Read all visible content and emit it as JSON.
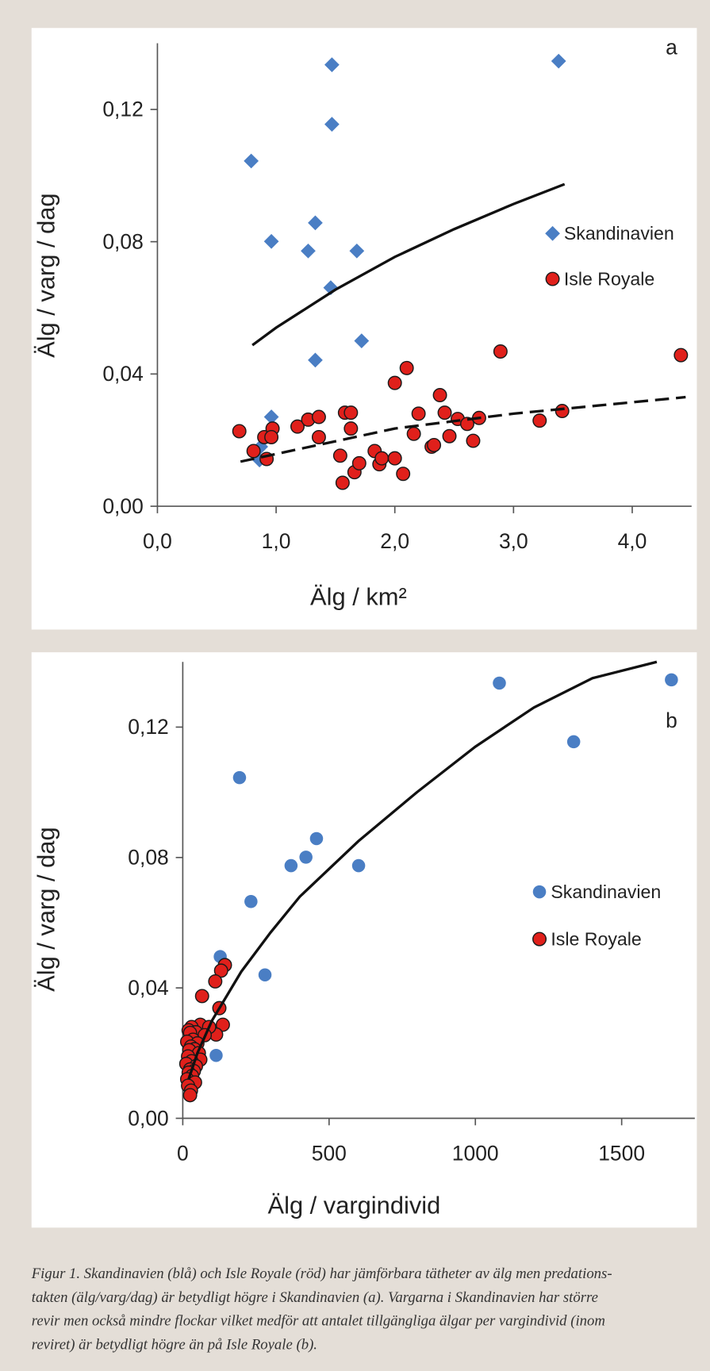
{
  "chart_data": [
    {
      "type": "scatter",
      "panel_label": "a",
      "xlabel": "Älg / km²",
      "ylabel": "Älg / varg / dag",
      "xlim": [
        0,
        4.5
      ],
      "ylim": [
        0,
        0.14
      ],
      "xticks": [
        {
          "value": 0,
          "label": "0,0"
        },
        {
          "value": 1,
          "label": "1,0"
        },
        {
          "value": 2,
          "label": "2,0"
        },
        {
          "value": 3,
          "label": "3,0"
        },
        {
          "value": 4,
          "label": "4,0"
        }
      ],
      "yticks": [
        {
          "value": 0,
          "label": "0,00"
        },
        {
          "value": 0.04,
          "label": "0,04"
        },
        {
          "value": 0.08,
          "label": "0,08"
        },
        {
          "value": 0.12,
          "label": "0,12"
        }
      ],
      "series": [
        {
          "name": "Skandinavien",
          "color": "#4a7ec4",
          "marker": "diamond",
          "x": [
            1.47,
            3.38,
            1.47,
            0.79,
            1.33,
            0.96,
            1.27,
            1.68,
            1.46,
            1.72,
            1.33,
            0.96,
            0.87,
            0.86
          ],
          "values": [
            0.1335,
            0.1346,
            0.1155,
            0.1044,
            0.0857,
            0.0801,
            0.0772,
            0.0772,
            0.0661,
            0.05,
            0.0442,
            0.027,
            0.018,
            0.014
          ]
        },
        {
          "name": "Isle Royale",
          "color": "#e0201b",
          "marker": "circle",
          "x": [
            0.69,
            0.81,
            0.9,
            0.92,
            0.97,
            0.96,
            1.18,
            1.27,
            1.36,
            1.36,
            1.54,
            1.58,
            1.63,
            1.63,
            1.56,
            1.66,
            1.7,
            1.83,
            1.87,
            1.89,
            2.0,
            2.0,
            2.1,
            2.07,
            2.16,
            2.2,
            2.31,
            2.33,
            2.38,
            2.42,
            2.46,
            2.53,
            2.61,
            2.66,
            2.71,
            2.89,
            3.22,
            3.41,
            4.41
          ],
          "values": [
            0.0227,
            0.0167,
            0.0209,
            0.0143,
            0.0235,
            0.0209,
            0.0241,
            0.0262,
            0.027,
            0.0209,
            0.0153,
            0.0283,
            0.0283,
            0.0235,
            0.0071,
            0.0103,
            0.013,
            0.0167,
            0.0127,
            0.0145,
            0.0145,
            0.0373,
            0.0418,
            0.0098,
            0.0219,
            0.028,
            0.018,
            0.0185,
            0.0336,
            0.0283,
            0.0212,
            0.0264,
            0.0249,
            0.0198,
            0.0267,
            0.0468,
            0.0259,
            0.0288,
            0.0457
          ]
        },
        {
          "marker": "line",
          "style": "solid",
          "color": "#111111",
          "x": [
            0.8,
            1.0,
            1.5,
            2.0,
            2.5,
            3.0,
            3.43
          ],
          "values": [
            0.0487,
            0.054,
            0.0655,
            0.0754,
            0.0838,
            0.0914,
            0.0974
          ]
        },
        {
          "marker": "line",
          "style": "dashed",
          "color": "#111111",
          "x": [
            0.7,
            2.0,
            3.0,
            4.45
          ],
          "values": [
            0.0135,
            0.0235,
            0.028,
            0.033
          ]
        }
      ]
    },
    {
      "type": "scatter",
      "panel_label": "b",
      "xlabel": "Älg / vargindivid",
      "ylabel": "Älg / varg / dag",
      "xlim": [
        0,
        1750
      ],
      "ylim": [
        0,
        0.14
      ],
      "xticks": [
        0,
        500,
        1000,
        1500
      ],
      "yticks": [
        {
          "value": 0,
          "label": "0,00"
        },
        {
          "value": 0.04,
          "label": "0,04"
        },
        {
          "value": 0.08,
          "label": "0,08"
        },
        {
          "value": 0.12,
          "label": "0,12"
        }
      ],
      "series": [
        {
          "name": "Skandinavien",
          "color": "#4a7ec4",
          "marker": "dot",
          "x": [
            194,
            1082,
            1336,
            1670,
            233,
            370,
            421,
            457,
            601,
            128,
            281,
            114
          ],
          "values": [
            0.1045,
            0.1335,
            0.1155,
            0.1345,
            0.0665,
            0.0775,
            0.0801,
            0.0858,
            0.0775,
            0.0496,
            0.044,
            0.0193
          ]
        },
        {
          "name": "Isle Royale",
          "color": "#e0201b",
          "marker": "circle",
          "x": [
            144,
            131,
            111,
            66,
            125,
            137,
            114,
            60,
            30,
            90,
            20,
            45,
            25,
            75,
            35,
            15,
            50,
            28,
            40,
            22,
            55,
            18,
            60,
            30,
            12,
            45,
            25,
            38,
            20,
            32,
            15,
            42,
            18,
            28,
            25
          ],
          "values": [
            0.047,
            0.0453,
            0.042,
            0.0375,
            0.0338,
            0.0287,
            0.0257,
            0.0287,
            0.028,
            0.028,
            0.027,
            0.0264,
            0.0262,
            0.0255,
            0.0241,
            0.0235,
            0.023,
            0.022,
            0.0212,
            0.0209,
            0.02,
            0.019,
            0.018,
            0.0175,
            0.0167,
            0.016,
            0.015,
            0.0145,
            0.014,
            0.013,
            0.012,
            0.011,
            0.01,
            0.0085,
            0.0071
          ]
        },
        {
          "marker": "line",
          "style": "solid",
          "color": "#111111",
          "x": [
            20,
            50,
            100,
            200,
            300,
            400,
            600,
            800,
            1000,
            1200,
            1400,
            1620
          ],
          "values": [
            0.012,
            0.02,
            0.03,
            0.045,
            0.057,
            0.068,
            0.085,
            0.1,
            0.114,
            0.126,
            0.135,
            0.14
          ]
        }
      ]
    }
  ],
  "caption": [
    "Figur 1. Skandinavien (blå) och Isle Royale (röd) har jämförbara tätheter av älg men predations-",
    "takten (älg/varg/dag) är betydligt högre i Skandinavien (a). Vargarna i Skandinavien har större",
    "revir men också mindre flockar vilket medför att antalet tillgängliga älgar per vargindivid (inom",
    "reviret) är betydligt högre än på Isle Royale (b)."
  ]
}
